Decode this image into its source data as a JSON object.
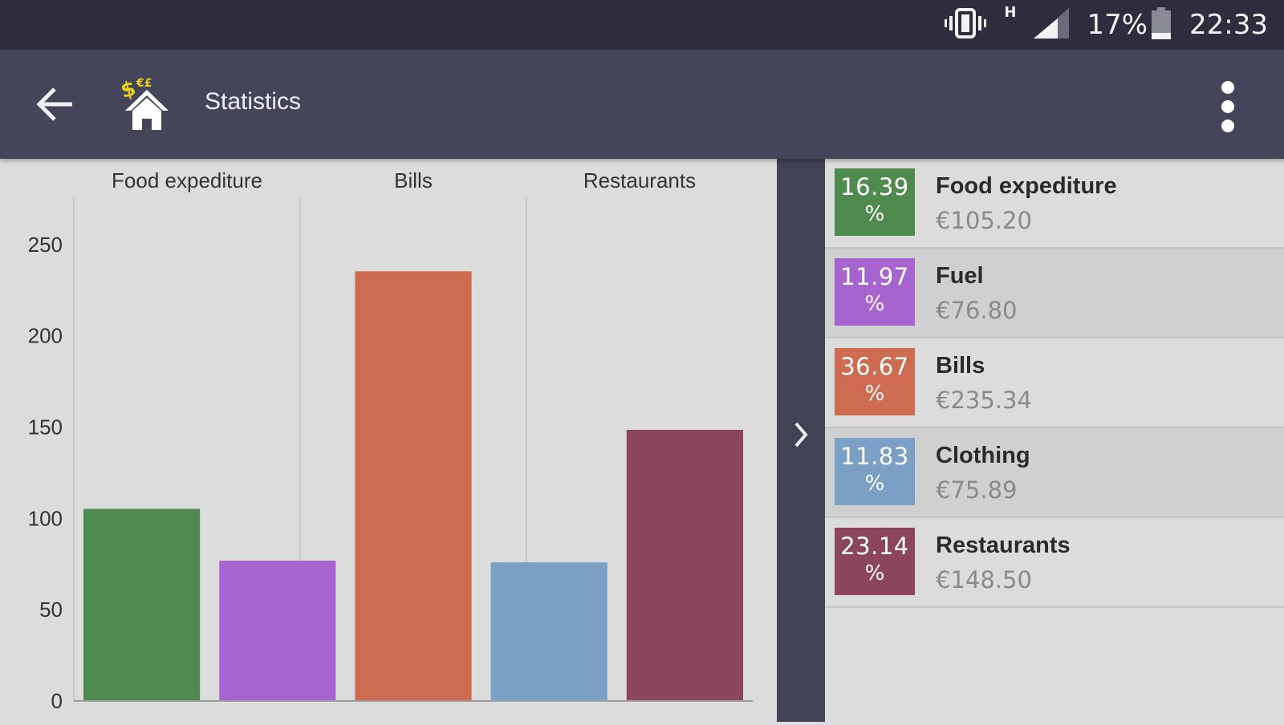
{
  "status_bar": {
    "network_type": "H",
    "battery_percent": "17%",
    "time": "22:33",
    "icons": [
      "vibrate-icon",
      "signal-icon",
      "battery-icon"
    ]
  },
  "app_bar": {
    "title": "Statistics",
    "back_icon": "back-arrow-icon",
    "logo_icon": "house-money-logo",
    "menu_icon": "more-vert-icon",
    "background": "#444558"
  },
  "drawer_handle": {
    "icon": "chevron-right-icon"
  },
  "chart_data": {
    "type": "bar",
    "categories": [
      "Food expediture",
      "Fuel",
      "Bills",
      "Clothing",
      "Restaurants"
    ],
    "top_labels": [
      "Food expediture",
      "Bills",
      "Restaurants"
    ],
    "values": [
      105.2,
      76.8,
      235.34,
      75.89,
      148.5
    ],
    "colors": [
      "#4f8a4f",
      "#a864ce",
      "#cd6c51",
      "#7ba0c6",
      "#8b455d"
    ],
    "yticks": [
      0,
      50,
      100,
      150,
      200,
      250
    ],
    "ylim": [
      0,
      275
    ],
    "grid": true,
    "title": "",
    "xlabel": "",
    "ylabel": ""
  },
  "legend": {
    "items": [
      {
        "percent": "16.39",
        "percent_sign": "%",
        "name": "Food expediture",
        "amount": "€105.20",
        "color": "#4f8a4f"
      },
      {
        "percent": "11.97",
        "percent_sign": "%",
        "name": "Fuel",
        "amount": "€76.80",
        "color": "#a864ce"
      },
      {
        "percent": "36.67",
        "percent_sign": "%",
        "name": "Bills",
        "amount": "€235.34",
        "color": "#cd6c51"
      },
      {
        "percent": "11.83",
        "percent_sign": "%",
        "name": "Clothing",
        "amount": "€75.89",
        "color": "#7ba0c6"
      },
      {
        "percent": "23.14",
        "percent_sign": "%",
        "name": "Restaurants",
        "amount": "€148.50",
        "color": "#8b455d"
      }
    ]
  }
}
